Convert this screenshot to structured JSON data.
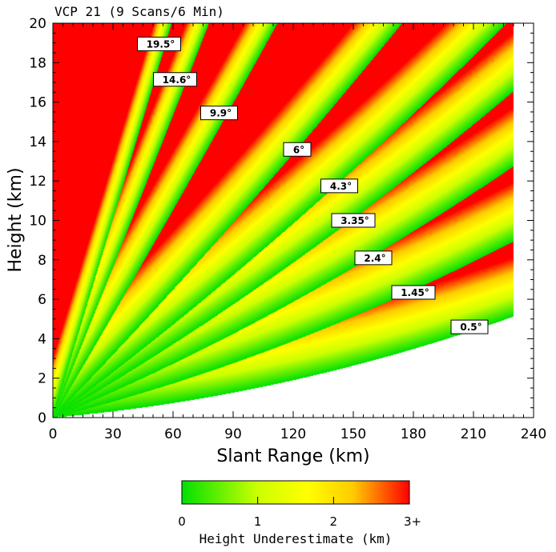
{
  "chart_data": {
    "type": "heatmap",
    "title": "VCP 21 (9 Scans/6 Min)",
    "xlabel": "Slant Range (km)",
    "ylabel": "Height (km)",
    "xlim": [
      0,
      240
    ],
    "ylim": [
      0,
      20
    ],
    "x_ticks": [
      0,
      30,
      60,
      90,
      120,
      150,
      180,
      210,
      240
    ],
    "y_ticks": [
      0,
      2,
      4,
      6,
      8,
      10,
      12,
      14,
      16,
      18,
      20
    ],
    "max_range_km": 230,
    "elevation_angles_deg": [
      0.5,
      1.45,
      2.4,
      3.35,
      4.3,
      6,
      9.9,
      14.6,
      19.5
    ],
    "beam_labels": [
      {
        "text": "19.5°",
        "angle": 19.5
      },
      {
        "text": "14.6°",
        "angle": 14.6
      },
      {
        "text": "9.9°",
        "angle": 9.9
      },
      {
        "text": "6°",
        "angle": 6
      },
      {
        "text": "4.3°",
        "angle": 4.3
      },
      {
        "text": "3.35°",
        "angle": 3.35
      },
      {
        "text": "2.4°",
        "angle": 2.4
      },
      {
        "text": "1.45°",
        "angle": 1.45
      },
      {
        "text": "0.5°",
        "angle": 0.5
      }
    ],
    "colorbar": {
      "title": "Height Underestimate (km)",
      "ticks": [
        0,
        1,
        2,
        3
      ],
      "tick_labels": [
        "0",
        "1",
        "2",
        "3+"
      ],
      "range": [
        0,
        3
      ],
      "colors": [
        "#00e000",
        "#ffff00",
        "#ff0000"
      ]
    },
    "colors": {
      "low": "#00e000",
      "mid": "#ffff00",
      "high": "#ff0000"
    }
  }
}
